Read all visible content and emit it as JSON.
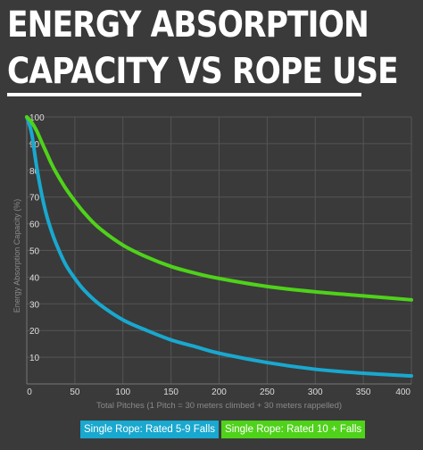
{
  "title": {
    "line1": "ENERGY ABSORPTION",
    "line2": "CAPACITY VS ROPE USE"
  },
  "colors": {
    "background": "#3a3a3a",
    "title": "#ffffff",
    "grid": "#555555",
    "axis_text": "#dddddd",
    "series_blue": "#19a8cf",
    "series_green": "#4fd21a"
  },
  "chart_data": {
    "type": "line",
    "title": "ENERGY ABSORPTION CAPACITY VS ROPE USE",
    "xlabel": "Total Pitches (1 Pitch = 30 meters climbed + 30 meters rappelled)",
    "ylabel": "Energy Absorption Capacity (%)",
    "xlim": [
      0,
      400
    ],
    "ylim": [
      0,
      100
    ],
    "x_ticks": [
      "0",
      "50",
      "100",
      "150",
      "200",
      "250",
      "300",
      "350",
      "400"
    ],
    "y_ticks": [
      "10",
      "20",
      "30",
      "40",
      "50",
      "60",
      "70",
      "80",
      "90",
      "100"
    ],
    "grid": true,
    "legend_position": "bottom",
    "series": [
      {
        "name": "Single Rope: Rated 5-9 Falls",
        "color": "#19a8cf",
        "x": [
          0,
          5,
          10,
          15,
          20,
          25,
          30,
          40,
          50,
          60,
          75,
          100,
          125,
          150,
          175,
          200,
          250,
          300,
          350,
          400
        ],
        "y": [
          100,
          94,
          82,
          72,
          64,
          58,
          53,
          45,
          39.5,
          35,
          30,
          24,
          20,
          16.5,
          14,
          11.5,
          8,
          5.5,
          4,
          3
        ]
      },
      {
        "name": "Single Rope: Rated 10 + Falls",
        "color": "#4fd21a",
        "x": [
          0,
          5,
          10,
          15,
          20,
          25,
          30,
          40,
          50,
          60,
          75,
          100,
          125,
          150,
          175,
          200,
          250,
          300,
          350,
          400
        ],
        "y": [
          100,
          98,
          95,
          91,
          87,
          83,
          79.5,
          73.5,
          68.5,
          64,
          58.5,
          52,
          47.5,
          44,
          41.5,
          39.5,
          36.5,
          34.5,
          33,
          31.5
        ]
      }
    ]
  }
}
